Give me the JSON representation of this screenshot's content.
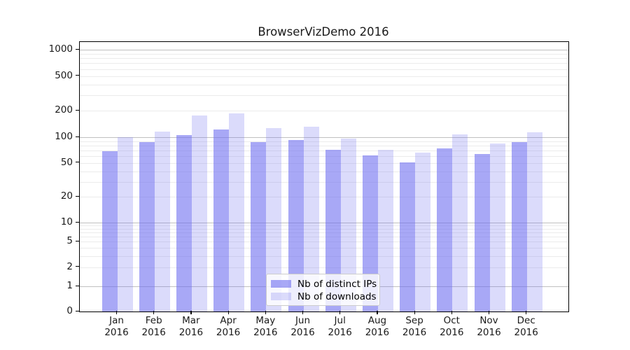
{
  "figure": {
    "title": "BrowserVizDemo 2016"
  },
  "legend": {
    "items": [
      {
        "label": "Nb of distinct IPs"
      },
      {
        "label": "Nb of downloads"
      }
    ]
  },
  "chart_data": {
    "type": "bar",
    "title": "BrowserVizDemo 2016",
    "categories": [
      "Jan 2016",
      "Feb 2016",
      "Mar 2016",
      "Apr 2016",
      "May 2016",
      "Jun 2016",
      "Jul 2016",
      "Aug 2016",
      "Sep 2016",
      "Oct 2016",
      "Nov 2016",
      "Dec 2016"
    ],
    "x_tick_line1": [
      "Jan",
      "Feb",
      "Mar",
      "Apr",
      "May",
      "Jun",
      "Jul",
      "Aug",
      "Sep",
      "Oct",
      "Nov",
      "Dec"
    ],
    "x_tick_line2": "2016",
    "series": [
      {
        "name": "Nb of distinct IPs",
        "color": "rgba(110,110,240,0.6)",
        "values": [
          68,
          88,
          105,
          122,
          88,
          93,
          71,
          61,
          51,
          74,
          63,
          87
        ]
      },
      {
        "name": "Nb of downloads",
        "color": "rgba(110,110,240,0.25)",
        "values": [
          100,
          115,
          178,
          186,
          126,
          131,
          96,
          71,
          66,
          108,
          84,
          114
        ]
      }
    ],
    "xlabel": "",
    "ylabel": "",
    "y_axis": {
      "scale": "log-with-zero-baseline",
      "tick_values": [
        0,
        1,
        2,
        5,
        10,
        20,
        50,
        100,
        200,
        500,
        1000
      ],
      "ylim": [
        0,
        1300
      ]
    },
    "grid": {
      "major": true,
      "minor": true
    },
    "legend_position": "lower center inside plot",
    "colors": {
      "bar_distinct_ips": "rgba(110,110,240,0.6)",
      "bar_downloads": "rgba(110,110,240,0.25)",
      "major_grid": "#c0c0c0",
      "minor_grid": "#ebebeb",
      "frame": "#000000"
    }
  }
}
